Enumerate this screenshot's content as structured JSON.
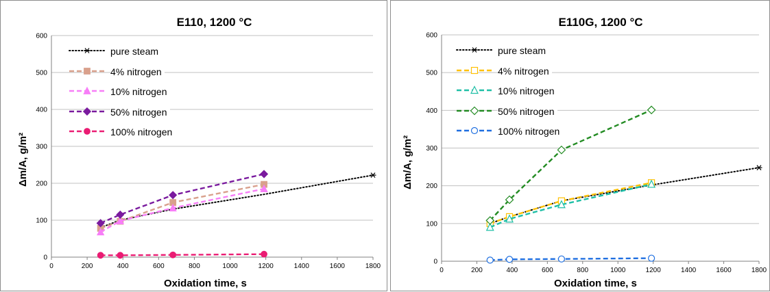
{
  "chart_data": [
    {
      "type": "line",
      "title": "E110, 1200 °C",
      "xlabel": "Oxidation time, s",
      "ylabel": "Δm/A, g/m²",
      "xlim": [
        0,
        1800
      ],
      "ylim": [
        0,
        600
      ],
      "x_ticks": [
        "0",
        "200",
        "400",
        "600",
        "800",
        "1000",
        "1200",
        "1400",
        "1600",
        "1800"
      ],
      "y_ticks": [
        "0",
        "100",
        "200",
        "300",
        "400",
        "500",
        "600"
      ],
      "grid": "horizontal",
      "legend_placement": "top-left",
      "series": [
        {
          "name": "pure steam",
          "color": "#000000",
          "dash": "dotted",
          "marker": "asterisk",
          "x": [
            275,
            385,
            680,
            1190,
            1800
          ],
          "y": [
            80,
            100,
            130,
            170,
            222
          ],
          "marker_x": [
            1800
          ],
          "marker_y": [
            222
          ]
        },
        {
          "name": "4% nitrogen",
          "color": "#d9a08c",
          "dash": "dashed",
          "marker": "square",
          "x": [
            275,
            385,
            680,
            1190
          ],
          "y": [
            78,
            97,
            148,
            197
          ]
        },
        {
          "name": "10% nitrogen",
          "color": "#f77ef7",
          "dash": "dashed",
          "marker": "triangle",
          "x": [
            275,
            385,
            680,
            1190
          ],
          "y": [
            68,
            98,
            133,
            185
          ]
        },
        {
          "name": "50% nitrogen",
          "color": "#7a1a9e",
          "dash": "dashed",
          "marker": "diamond",
          "x": [
            275,
            385,
            680,
            1190
          ],
          "y": [
            92,
            115,
            168,
            225
          ]
        },
        {
          "name": "100% nitrogen",
          "color": "#ea1c73",
          "dash": "dashed",
          "marker": "circle",
          "x": [
            275,
            385,
            680,
            1190
          ],
          "y": [
            5,
            5,
            6,
            8
          ]
        }
      ]
    },
    {
      "type": "line",
      "title": "E110G, 1200 °C",
      "xlabel": "Oxidation time, s",
      "ylabel": "Δm/A, g/m²",
      "xlim": [
        0,
        1800
      ],
      "ylim": [
        0,
        600
      ],
      "x_ticks": [
        "0",
        "200",
        "400",
        "600",
        "800",
        "1000",
        "1200",
        "1400",
        "1600",
        "1800"
      ],
      "y_ticks": [
        "0",
        "100",
        "200",
        "300",
        "400",
        "500",
        "600"
      ],
      "grid": "horizontal",
      "legend_placement": "top-left",
      "series": [
        {
          "name": "pure steam",
          "color": "#000000",
          "dash": "dotted",
          "marker": "asterisk",
          "x": [
            275,
            385,
            680,
            1190,
            1800
          ],
          "y": [
            100,
            118,
            160,
            202,
            248
          ],
          "marker_x": [
            1800
          ],
          "marker_y": [
            248
          ]
        },
        {
          "name": "4% nitrogen",
          "color": "#ffc000",
          "dash": "dashed",
          "marker": "open-square",
          "x": [
            275,
            385,
            680,
            1190
          ],
          "y": [
            100,
            118,
            160,
            208
          ]
        },
        {
          "name": "10% nitrogen",
          "color": "#1fbfa6",
          "dash": "dashed",
          "marker": "open-triangle",
          "x": [
            275,
            385,
            680,
            1190
          ],
          "y": [
            90,
            112,
            150,
            204
          ]
        },
        {
          "name": "50% nitrogen",
          "color": "#228b22",
          "dash": "dashed",
          "marker": "open-diamond",
          "x": [
            275,
            385,
            680,
            1190
          ],
          "y": [
            108,
            163,
            295,
            401
          ]
        },
        {
          "name": "100% nitrogen",
          "color": "#1f6fe0",
          "dash": "dashed",
          "marker": "open-circle",
          "x": [
            275,
            385,
            680,
            1190
          ],
          "y": [
            3,
            5,
            6,
            8
          ]
        }
      ]
    }
  ]
}
